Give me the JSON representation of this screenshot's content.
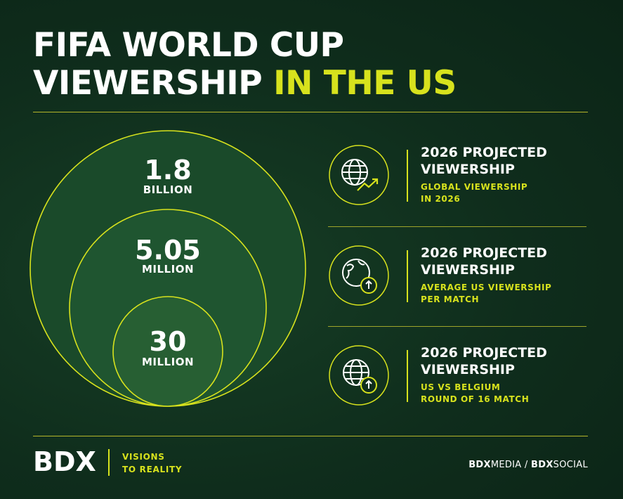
{
  "title": {
    "line1": "FIFA WORLD CUP",
    "line2_white": "VIEWERSHIP",
    "line2_highlight": "IN THE US"
  },
  "circles": [
    {
      "number": "1.8",
      "unit": "BILLION"
    },
    {
      "number": "5.05",
      "unit": "MILLION"
    },
    {
      "number": "30",
      "unit": "MILLION"
    }
  ],
  "cards": [
    {
      "icon": "globe-growth-icon",
      "heading_line1": "2026 PROJECTED",
      "heading_line2": "VIEWERSHIP",
      "sub_line1": "GLOBAL VIEWERSHIP",
      "sub_line2": "IN 2026"
    },
    {
      "icon": "world-map-up-icon",
      "heading_line1": "2026 PROJECTED",
      "heading_line2": "VIEWERSHIP",
      "sub_line1": "AVERAGE US VIEWERSHIP",
      "sub_line2": "PER MATCH"
    },
    {
      "icon": "globe-up-icon",
      "heading_line1": "2026 PROJECTED",
      "heading_line2": "VIEWERSHIP",
      "sub_line1": "US VS BELGIUM",
      "sub_line2": "ROUND OF 16 MATCH"
    }
  ],
  "footer": {
    "brand": "BDX",
    "tagline_line1": "VISIONS",
    "tagline_line2": "TO REALITY",
    "media_bold": "BDX",
    "media_light": "MEDIA",
    "separator": " / ",
    "social_bold": "BDX",
    "social_light": "SOCIAL"
  },
  "colors": {
    "background": "#0f2d1c",
    "accent": "#d7e21d",
    "text": "#ffffff"
  }
}
